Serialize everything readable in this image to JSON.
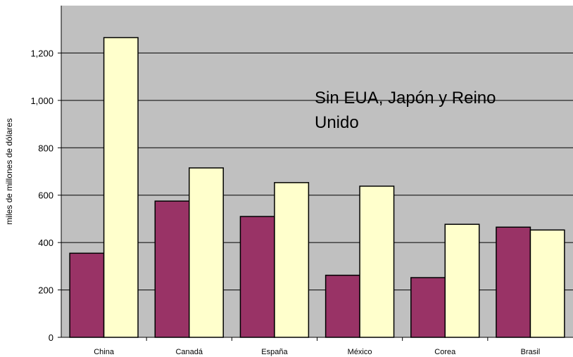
{
  "chart_data": {
    "type": "bar",
    "title": "",
    "xlabel": "",
    "ylabel": "miles de millones de dólares",
    "ylim": [
      0,
      1400
    ],
    "yticks": [
      0,
      200,
      400,
      600,
      800,
      1000,
      1200
    ],
    "ytick_labels": [
      "0",
      "200",
      "400",
      "600",
      "800",
      "1,000",
      "1,200"
    ],
    "grid": true,
    "legend": "none",
    "categories": [
      "China",
      "Canadá",
      "España",
      "México",
      "Corea",
      "Brasil"
    ],
    "series": [
      {
        "values": [
          355,
          575,
          510,
          262,
          252,
          465
        ],
        "color": "#993366"
      },
      {
        "values": [
          1265,
          715,
          653,
          638,
          477,
          453
        ],
        "color": "#FFFFCC"
      }
    ],
    "annotation": {
      "line1": "Sin EUA, Japón y Reino",
      "line2": "Unido"
    },
    "plot_background": "#C0C0C0"
  }
}
